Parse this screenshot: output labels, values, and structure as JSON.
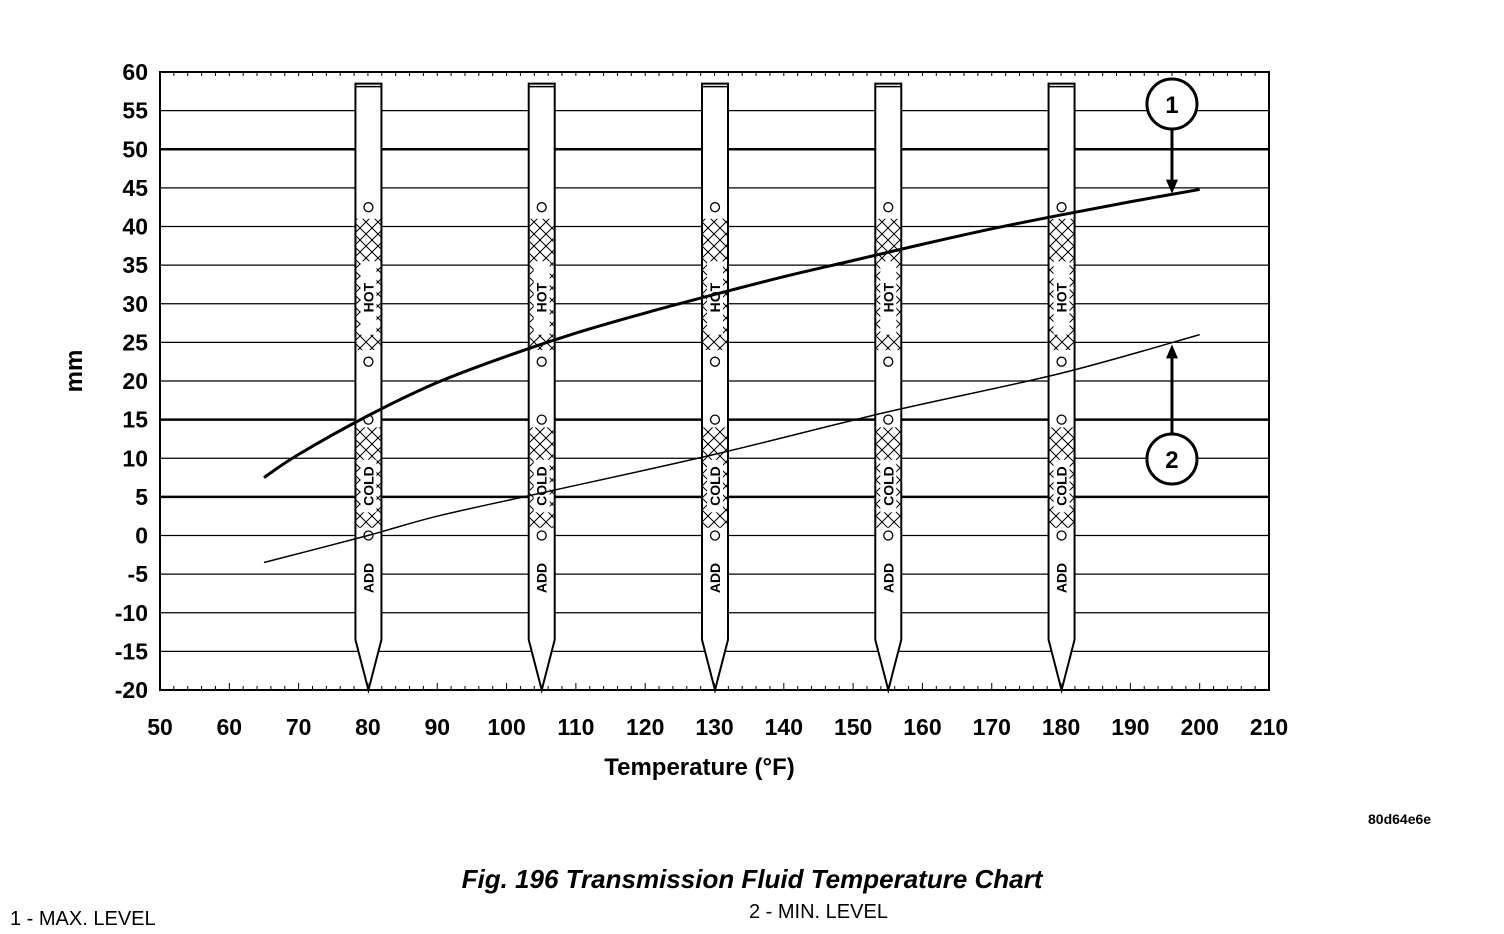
{
  "chart_data": {
    "type": "line",
    "xlabel": "Temperature (°F)",
    "ylabel": "mm",
    "xlim": [
      50,
      210
    ],
    "ylim": [
      -20,
      60
    ],
    "x_ticks": [
      50,
      60,
      70,
      80,
      90,
      100,
      110,
      120,
      130,
      140,
      150,
      160,
      170,
      180,
      190,
      200,
      210
    ],
    "y_ticks": [
      60,
      55,
      50,
      45,
      40,
      35,
      30,
      25,
      20,
      15,
      10,
      5,
      0,
      -5,
      -10,
      -15,
      -20
    ],
    "grid": true,
    "series": [
      {
        "callout": "1",
        "x": [
          65,
          70,
          80,
          90,
          100,
          110,
          120,
          130,
          140,
          150,
          160,
          170,
          180,
          190,
          200
        ],
        "values": [
          7.5,
          10.5,
          15.5,
          19.8,
          23.2,
          26.2,
          28.8,
          31.2,
          33.5,
          35.6,
          37.7,
          39.7,
          41.5,
          43.2,
          44.8
        ]
      },
      {
        "callout": "2",
        "x": [
          65,
          80,
          90,
          105,
          130,
          155,
          180,
          200
        ],
        "values": [
          -3.5,
          0,
          2.5,
          5.5,
          10.5,
          16,
          21,
          26
        ]
      }
    ],
    "dipsticks": [
      {
        "x": 80,
        "labels": [
          "HOT",
          "COLD",
          "ADD"
        ]
      },
      {
        "x": 105,
        "labels": [
          "HOT",
          "COLD",
          "ADD"
        ]
      },
      {
        "x": 130,
        "labels": [
          "HOT",
          "COLD",
          "ADD"
        ]
      },
      {
        "x": 155,
        "labels": [
          "HOT",
          "COLD",
          "ADD"
        ]
      },
      {
        "x": 180,
        "labels": [
          "HOT",
          "COLD",
          "ADD"
        ]
      }
    ],
    "callouts": [
      {
        "label": "1",
        "points_to": {
          "x": 196,
          "y": 44
        }
      },
      {
        "label": "2",
        "points_to": {
          "x": 196,
          "y": 25
        }
      }
    ]
  },
  "figure_code": "80d64e6e",
  "caption": "Fig. 196 Transmission Fluid Temperature Chart",
  "legend": [
    "1 - MAX. LEVEL",
    "2 - MIN. LEVEL"
  ]
}
